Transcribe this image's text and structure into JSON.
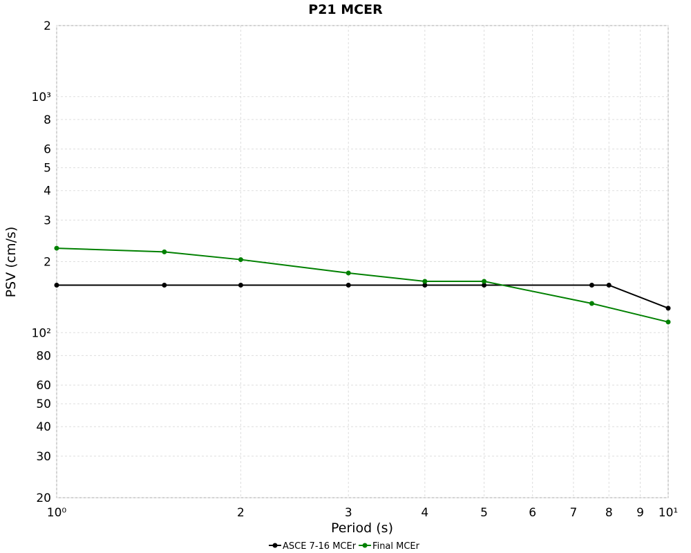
{
  "chart_data": {
    "type": "line",
    "title": "P21 MCER",
    "x_label": "Period (s)",
    "y_label": "PSV (cm/s)",
    "x_scale": "log",
    "y_scale": "log",
    "grid": true,
    "legend": "bottom",
    "xlim": [
      1,
      10
    ],
    "ylim": [
      20,
      2000
    ],
    "xticks": [
      {
        "value": 1,
        "label": "10⁰"
      },
      2,
      3,
      4,
      5,
      6,
      7,
      8,
      9,
      {
        "value": 10,
        "label": "10¹"
      }
    ],
    "yticks": [
      20,
      30,
      40,
      50,
      60,
      80,
      {
        "value": 100,
        "label": "10²"
      },
      {
        "value": 200,
        "label": "2"
      },
      {
        "value": 300,
        "label": "3"
      },
      {
        "value": 400,
        "label": "4"
      },
      {
        "value": 500,
        "label": "5"
      },
      {
        "value": 600,
        "label": "6"
      },
      {
        "value": 800,
        "label": "8"
      },
      {
        "value": 1000,
        "label": "10³"
      },
      {
        "value": 2000,
        "label": "2"
      }
    ],
    "series": [
      {
        "name": "ASCE 7-16 MCEr",
        "color": "#000000",
        "x": [
          1,
          1.5,
          2,
          3,
          4,
          5,
          7.5,
          8,
          10
        ],
        "values": [
          159,
          159,
          159,
          159,
          159,
          159,
          159,
          159,
          127
        ]
      },
      {
        "name": "Final MCEr",
        "color": "#008000",
        "x": [
          1,
          1.5,
          2,
          3,
          4,
          5,
          7.5,
          10
        ],
        "values": [
          228,
          220,
          204,
          179,
          165,
          165,
          133,
          111
        ]
      }
    ]
  }
}
